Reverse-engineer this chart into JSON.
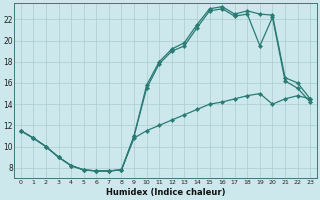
{
  "xlabel": "Humidex (Indice chaleur)",
  "background_color": "#cce8ec",
  "grid_color": "#aacccc",
  "line_color": "#2a7a75",
  "xlim": [
    -0.5,
    23.5
  ],
  "ylim": [
    7.0,
    23.5
  ],
  "xticks": [
    0,
    1,
    2,
    3,
    4,
    5,
    6,
    7,
    8,
    9,
    10,
    11,
    12,
    13,
    14,
    15,
    16,
    17,
    18,
    19,
    20,
    21,
    22,
    23
  ],
  "yticks": [
    8,
    10,
    12,
    14,
    16,
    18,
    20,
    22
  ],
  "s1_x": [
    0,
    1,
    2,
    3,
    4,
    5,
    6,
    7,
    8,
    9,
    10,
    11,
    12,
    13,
    14,
    15,
    16,
    17,
    18,
    19,
    20,
    21,
    22,
    23
  ],
  "s1_y": [
    11.5,
    10.8,
    10.0,
    9.0,
    8.2,
    7.8,
    7.7,
    7.7,
    7.8,
    11.0,
    15.8,
    18.0,
    19.2,
    19.8,
    21.5,
    23.0,
    23.2,
    22.5,
    22.8,
    22.5,
    22.4,
    16.5,
    16.0,
    14.5
  ],
  "s2_x": [
    0,
    1,
    2,
    3,
    4,
    5,
    6,
    7,
    8,
    9,
    10,
    11,
    12,
    13,
    14,
    15,
    16,
    17,
    18,
    19,
    20,
    21,
    22,
    23
  ],
  "s2_y": [
    11.5,
    10.8,
    10.0,
    9.0,
    8.2,
    7.8,
    7.7,
    7.7,
    7.8,
    11.0,
    15.5,
    17.8,
    19.0,
    19.5,
    21.2,
    22.8,
    23.0,
    22.3,
    22.5,
    19.5,
    22.2,
    16.2,
    15.5,
    14.2
  ],
  "s3_x": [
    0,
    1,
    2,
    3,
    4,
    5,
    6,
    7,
    8,
    9,
    10,
    11,
    12,
    13,
    14,
    15,
    16,
    17,
    18,
    19,
    20,
    21,
    22,
    23
  ],
  "s3_y": [
    11.5,
    10.8,
    10.0,
    9.0,
    8.2,
    7.8,
    7.7,
    7.7,
    7.8,
    10.8,
    11.5,
    12.0,
    12.5,
    13.0,
    13.5,
    14.0,
    14.2,
    14.5,
    14.8,
    15.0,
    14.0,
    14.5,
    14.8,
    14.5
  ]
}
